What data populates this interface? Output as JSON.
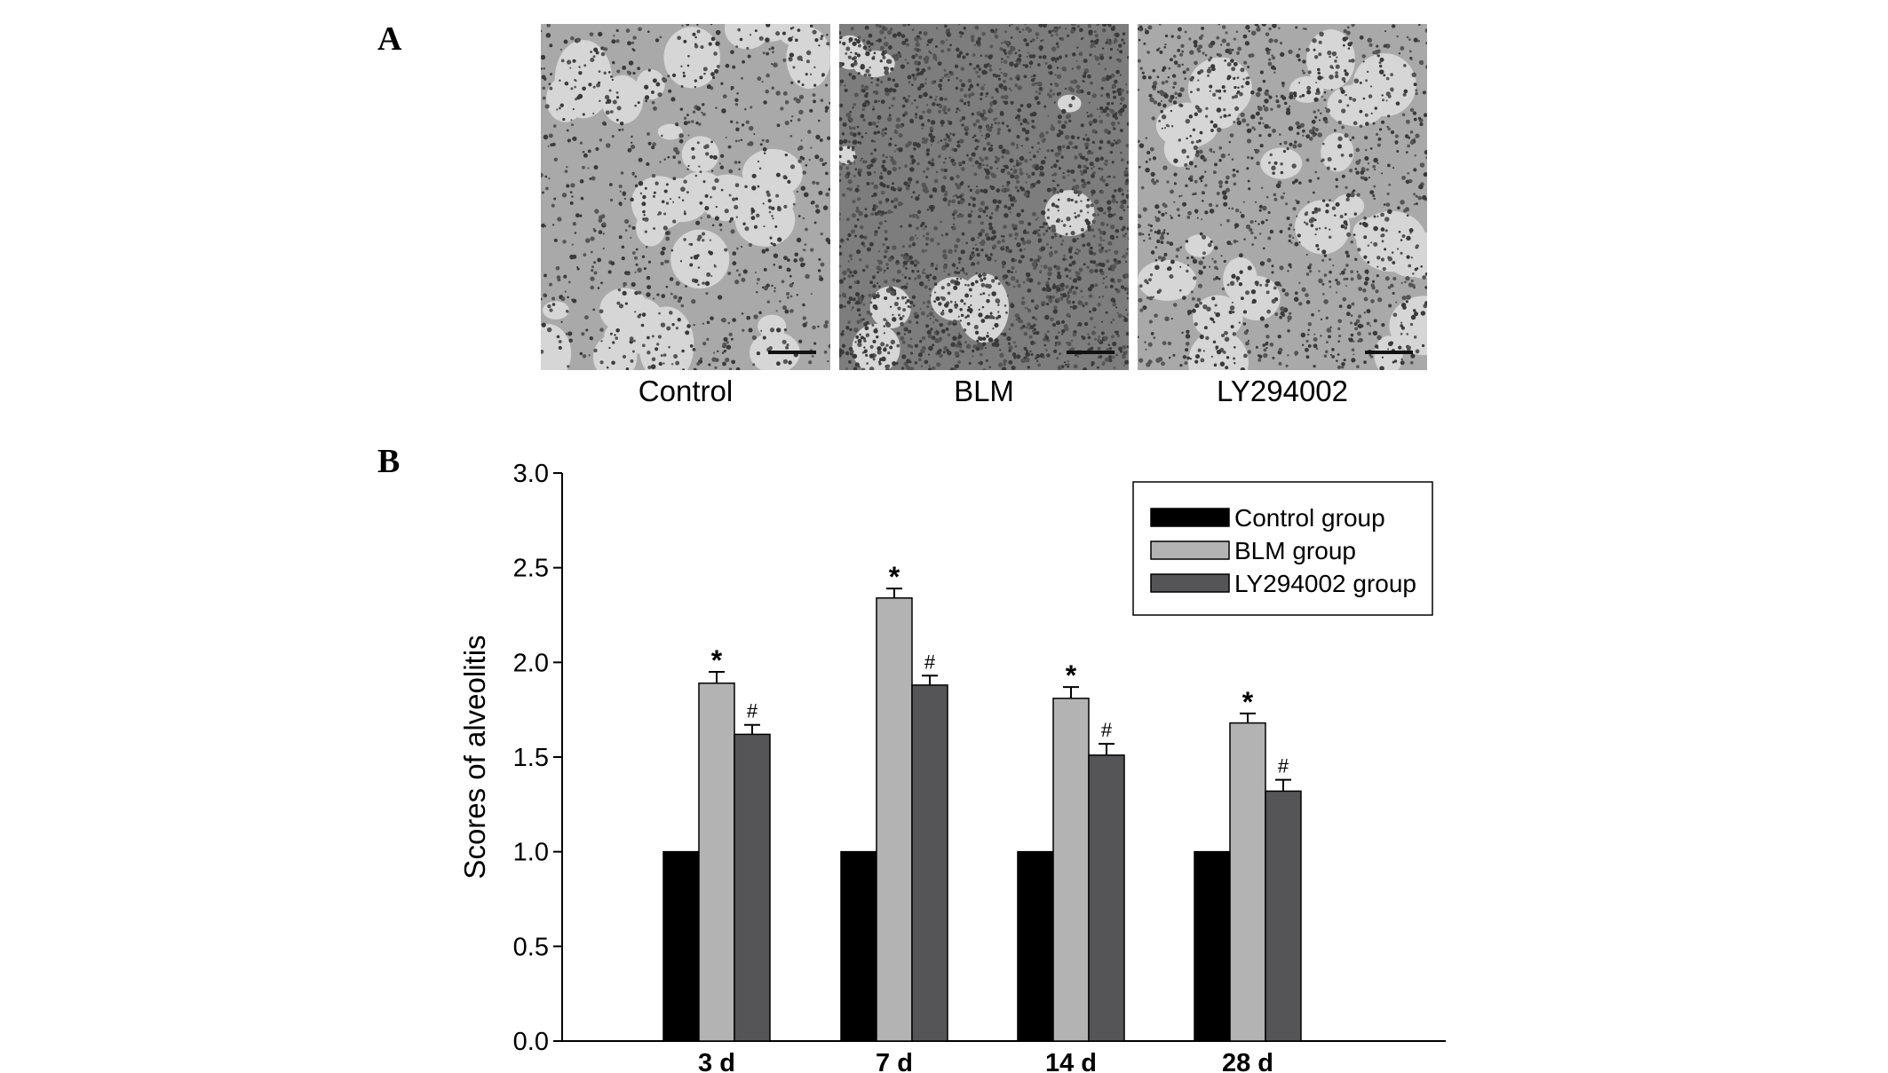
{
  "panels": {
    "a_label": "A",
    "b_label": "B"
  },
  "micrographs": [
    {
      "label": "Control"
    },
    {
      "label": "BLM"
    },
    {
      "label": "LY294002"
    }
  ],
  "colors": {
    "control": "#000000",
    "blm": "#b3b3b3",
    "ly": "#555558"
  },
  "chart_data": {
    "type": "bar",
    "categories": [
      "3 d",
      "7 d",
      "14 d",
      "28 d"
    ],
    "series": [
      {
        "name": "Control group",
        "values": [
          1.0,
          1.0,
          1.0,
          1.0
        ],
        "errors": [
          0,
          0,
          0,
          0
        ],
        "markers": [
          "",
          "",
          "",
          ""
        ]
      },
      {
        "name": "BLM group",
        "values": [
          1.89,
          2.34,
          1.81,
          1.68
        ],
        "errors": [
          0.06,
          0.05,
          0.06,
          0.05
        ],
        "markers": [
          "*",
          "*",
          "*",
          "*"
        ]
      },
      {
        "name": "LY294002 group",
        "values": [
          1.62,
          1.88,
          1.51,
          1.32
        ],
        "errors": [
          0.05,
          0.05,
          0.06,
          0.06
        ],
        "markers": [
          "#",
          "#",
          "#",
          "#"
        ]
      }
    ],
    "xlabel": "",
    "ylabel": "Scores of alveolitis",
    "ylim": [
      0,
      3.0
    ],
    "yticks": [
      "0.0",
      "0.5",
      "1.0",
      "1.5",
      "2.0",
      "2.5",
      "3.0"
    ],
    "legend_position": "top-right",
    "grid": false
  }
}
